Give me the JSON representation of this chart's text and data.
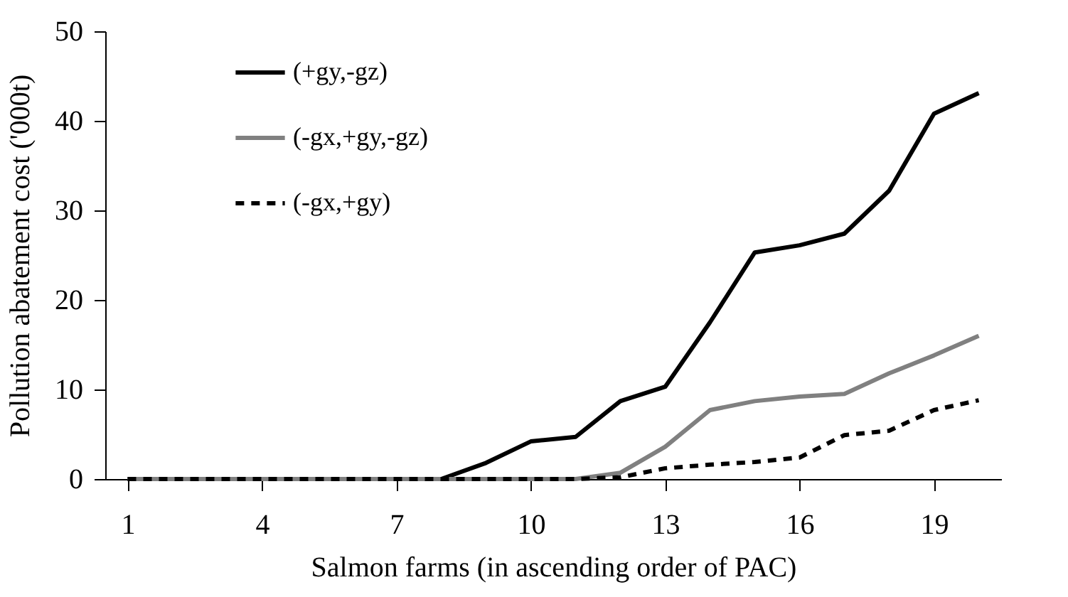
{
  "chart_data": {
    "type": "line",
    "xlabel": "Salmon farms (in ascending order of PAC)",
    "ylabel": "Pollution abatement cost ('000t)",
    "categories": [
      "1",
      null,
      null,
      "4",
      null,
      null,
      "7",
      null,
      null,
      "10",
      null,
      null,
      "13",
      null,
      null,
      "16",
      null,
      null,
      "19",
      null
    ],
    "ylim": [
      0,
      50
    ],
    "yticks": [
      0,
      10,
      20,
      30,
      40,
      50
    ],
    "grid": false,
    "legend": "top left",
    "marker": "none",
    "series": [
      {
        "name": "(+gy,-gz)",
        "color": "#000000",
        "line_style": "solid",
        "values": [
          0,
          0,
          0,
          0,
          0,
          0,
          0,
          0,
          1.8,
          4.2,
          4.7,
          8.7,
          10.3,
          17.5,
          25.3,
          26.1,
          27.4,
          32.2,
          40.8,
          43.1
        ]
      },
      {
        "name": "(-gx,+gy,-gz)",
        "color": "#808080",
        "line_style": "solid",
        "values": [
          0,
          0,
          0,
          0,
          0,
          0,
          0,
          0,
          0,
          0,
          0,
          0.7,
          3.6,
          7.7,
          8.7,
          9.2,
          9.5,
          11.8,
          13.8,
          16
        ]
      },
      {
        "name": "(-gx,+gy)",
        "color": "#000000",
        "line_style": "dashed",
        "values": [
          0,
          0,
          0,
          0,
          0,
          0,
          0,
          0,
          0,
          0,
          0,
          0.2,
          1.2,
          1.6,
          1.9,
          2.4,
          4.9,
          5.4,
          7.7,
          8.8
        ]
      }
    ]
  }
}
